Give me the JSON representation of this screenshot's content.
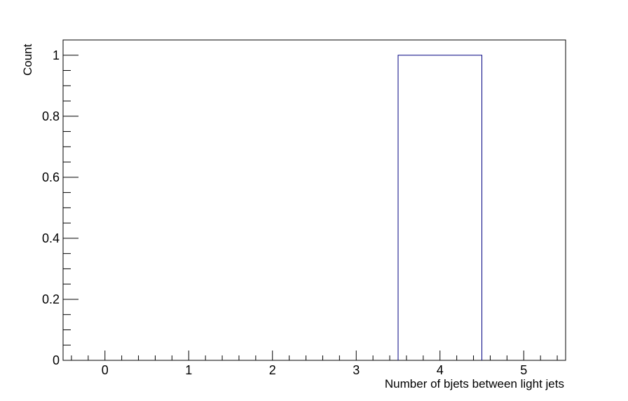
{
  "chart_data": {
    "type": "bar",
    "title": "",
    "xlabel": "Number of bjets between light jets",
    "ylabel": "Count",
    "x_bin_edges": [
      -0.5,
      0.5,
      1.5,
      2.5,
      3.5,
      4.5,
      5.5
    ],
    "values": [
      0,
      0,
      0,
      0,
      1,
      0
    ],
    "xlim": [
      -0.5,
      5.5
    ],
    "ylim": [
      0,
      1.05
    ],
    "x_ticks": [
      "0",
      "1",
      "2",
      "3",
      "4",
      "5"
    ],
    "y_ticks": [
      "0",
      "0.2",
      "0.4",
      "0.6",
      "0.8",
      "1"
    ],
    "grid": false,
    "legend": false,
    "colors": {
      "line": "#000080",
      "frame": "#000000"
    }
  }
}
